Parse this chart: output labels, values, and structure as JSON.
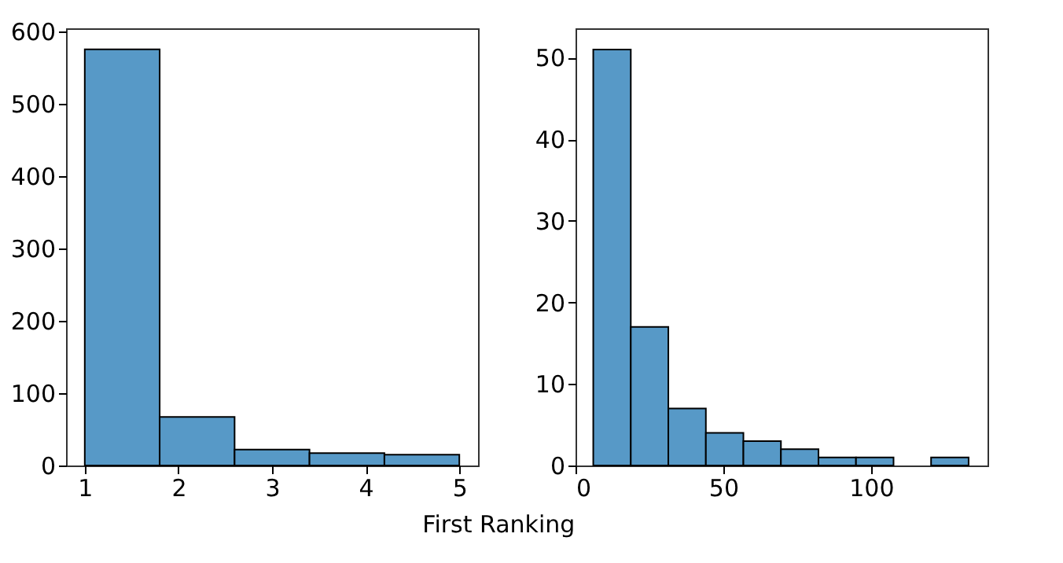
{
  "chart_data": [
    {
      "type": "histogram",
      "xlabel": "First Ranking",
      "bins": [
        1,
        1.8,
        2.6,
        3.4,
        4.2,
        5
      ],
      "values": [
        575,
        67,
        22,
        17,
        15
      ],
      "color": "#5799c7",
      "xlim": [
        0.8,
        5.2
      ],
      "xticks": [
        1,
        2,
        3,
        4,
        5
      ],
      "ylim": [
        0,
        604
      ],
      "yticks": [
        0,
        100,
        200,
        300,
        400,
        500,
        600
      ],
      "grid": false
    },
    {
      "type": "histogram",
      "bins": [
        6,
        18.7,
        31.4,
        44.1,
        56.8,
        69.5,
        82.2,
        94.9,
        107.6,
        120.3,
        133
      ],
      "values": [
        51,
        17,
        7,
        4,
        3,
        2,
        1,
        1,
        0,
        1
      ],
      "color": "#5799c7",
      "xlim": [
        0,
        139.4
      ],
      "xticks": [
        0,
        50,
        100
      ],
      "ylim": [
        0,
        53.6
      ],
      "yticks": [
        0,
        10,
        20,
        30,
        40,
        50
      ],
      "grid": false
    }
  ]
}
